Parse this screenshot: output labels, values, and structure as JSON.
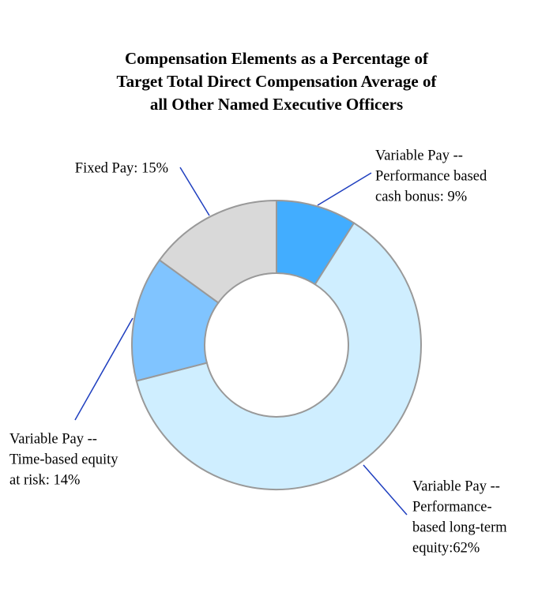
{
  "chart_data": {
    "type": "donut",
    "title": [
      "Compensation Elements as a Percentage of",
      "Target Total Direct Compensation Average of",
      "all Other Named Executive Officers"
    ],
    "values": [
      9,
      62,
      14,
      15
    ],
    "value_labels": [
      [
        "Variable Pay --",
        "Performance based",
        "cash bonus: 9%"
      ],
      [
        "Variable Pay --",
        "Performance-",
        "based long-term",
        "equity:62%"
      ],
      [
        "Variable Pay --",
        "Time-based equity",
        "at risk: 14%"
      ],
      [
        "Fixed Pay: 15%"
      ]
    ],
    "colors": [
      "#42adff",
      "#cfeeff",
      "#80c4ff",
      "#d9d9d9"
    ]
  }
}
